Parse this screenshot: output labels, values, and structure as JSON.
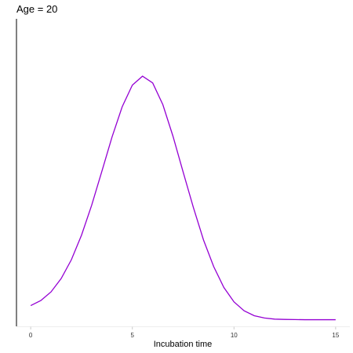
{
  "chart_data": {
    "type": "line",
    "title": "Age = 20",
    "xlabel": "Incubation time",
    "ylabel": "",
    "xlim": [
      -0.7,
      15.7
    ],
    "ylim": [
      0.0,
      0.2
    ],
    "xticks": [
      0,
      5,
      10,
      15
    ],
    "xtick_labels": [
      "0",
      "5",
      "10",
      "15"
    ],
    "grid": false,
    "legend": "none",
    "line_color": "#9400D3",
    "series": [
      {
        "x": [
          0,
          0.5,
          1,
          1.5,
          2,
          2.5,
          3,
          3.5,
          4,
          4.5,
          5,
          5.5,
          6,
          6.5,
          7,
          7.5,
          8,
          8.5,
          9,
          9.5,
          10,
          10.5,
          11,
          11.5,
          12,
          12.5,
          13,
          13.5,
          14,
          14.5,
          15
        ],
        "y": [
          0.0135,
          0.0168,
          0.0224,
          0.0311,
          0.0433,
          0.0593,
          0.0788,
          0.1008,
          0.1231,
          0.1428,
          0.1569,
          0.1627,
          0.1583,
          0.1442,
          0.1236,
          0.1003,
          0.0774,
          0.0562,
          0.0389,
          0.0253,
          0.0159,
          0.0101,
          0.0069,
          0.0054,
          0.0047,
          0.0045,
          0.0044,
          0.0043,
          0.0043,
          0.0043,
          0.0043
        ]
      }
    ]
  }
}
